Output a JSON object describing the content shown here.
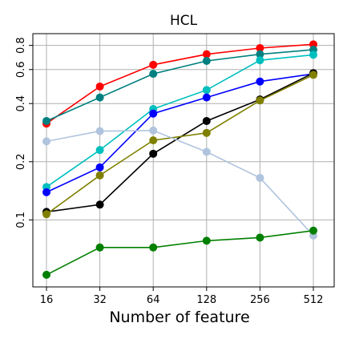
{
  "chart_data": {
    "type": "line",
    "title": "HCL",
    "xlabel": "Number of feature",
    "ylabel": "",
    "x_scale": "log2",
    "y_scale": "log",
    "x": [
      16,
      32,
      64,
      128,
      256,
      512
    ],
    "x_tick_labels": [
      "16",
      "32",
      "64",
      "128",
      "256",
      "512"
    ],
    "y_ticks": [
      0.1,
      0.2,
      0.4,
      0.6,
      0.8
    ],
    "y_tick_labels": [
      "0.1",
      "0.2",
      "0.4",
      "0.6",
      "0.8"
    ],
    "ylim": [
      0.045,
      0.92
    ],
    "grid": true,
    "legend": "none",
    "series": [
      {
        "color": "#ff0000",
        "values": [
          0.315,
          0.49,
          0.635,
          0.72,
          0.775,
          0.81
        ]
      },
      {
        "color": "#008080",
        "values": [
          0.325,
          0.43,
          0.57,
          0.665,
          0.72,
          0.76
        ]
      },
      {
        "color": "#00bfbf",
        "values": [
          0.148,
          0.23,
          0.375,
          0.47,
          0.67,
          0.715
        ]
      },
      {
        "color": "#0000ff",
        "values": [
          0.139,
          0.187,
          0.355,
          0.43,
          0.52,
          0.57
        ]
      },
      {
        "color": "#000000",
        "values": [
          0.11,
          0.12,
          0.22,
          0.325,
          0.42,
          0.575
        ]
      },
      {
        "color": "#808000",
        "values": [
          0.107,
          0.17,
          0.258,
          0.282,
          0.415,
          0.563
        ]
      },
      {
        "color": "#b0c4de",
        "values": [
          0.255,
          0.288,
          0.29,
          0.225,
          0.165,
          0.083
        ]
      },
      {
        "color": "#008000",
        "values": [
          0.052,
          0.072,
          0.072,
          0.078,
          0.081,
          0.088
        ]
      }
    ]
  }
}
